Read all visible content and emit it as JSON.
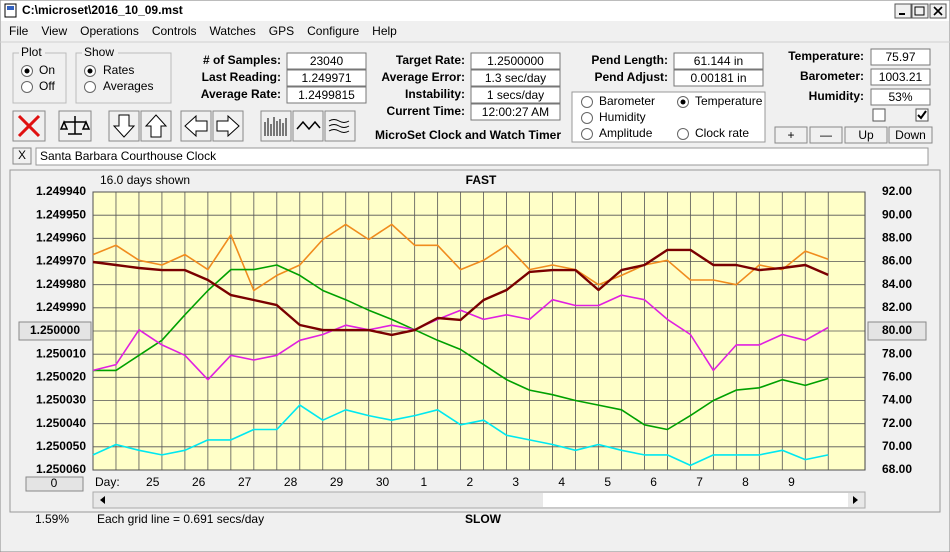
{
  "window": {
    "title": "C:\\microset\\2016_10_09.mst"
  },
  "menu": [
    "File",
    "View",
    "Operations",
    "Controls",
    "Watches",
    "GPS",
    "Configure",
    "Help"
  ],
  "plot_group": {
    "title": "Plot",
    "options": [
      {
        "label": "On",
        "selected": true
      },
      {
        "label": "Off",
        "selected": false
      }
    ]
  },
  "show_group": {
    "title": "Show",
    "options": [
      {
        "label": "Rates",
        "selected": true
      },
      {
        "label": "Averages",
        "selected": false
      }
    ]
  },
  "readings": [
    [
      {
        "label": "# of Samples:",
        "value": "23040"
      },
      {
        "label": "Last Reading:",
        "value": "1.249971"
      },
      {
        "label": "Average Rate:",
        "value": "1.2499815"
      }
    ],
    [
      {
        "label": "Target Rate:",
        "value": "1.2500000"
      },
      {
        "label": "Average Error:",
        "value": "1.3 sec/day"
      },
      {
        "label": "Instability:",
        "value": "1 secs/day"
      },
      {
        "label": "Current Time:",
        "value": "12:00:27 AM"
      }
    ],
    [
      {
        "label": "Pend Length:",
        "value": "61.144 in"
      },
      {
        "label": "Pend Adjust:",
        "value": "0.00181 in"
      }
    ],
    [
      {
        "label": "Temperature:",
        "value": "75.97"
      },
      {
        "label": "Barometer:",
        "value": "1003.21"
      },
      {
        "label": "Humidity:",
        "value": "53%"
      }
    ]
  ],
  "checkboxes": [
    false,
    true
  ],
  "app_title": "MicroSet Clock and Watch Timer",
  "buttons": [
    "+",
    "—",
    "Up",
    "Down"
  ],
  "close_button": "X",
  "clock_name": "Santa Barbara Courthouse Clock",
  "zero_button": "0",
  "percent": "1.59%",
  "chart_data": {
    "type": "line",
    "top_label": "FAST",
    "bottom_label": "SLOW",
    "days_shown": "16.0 days shown",
    "x_label": "Day:",
    "grid_note": "Each grid line = 0.691 secs/day",
    "selected_series": 1,
    "xlim": [
      0,
      16.8
    ],
    "xticks": [
      {
        "value": 1.3,
        "label": "25"
      },
      {
        "value": 2.3,
        "label": "26"
      },
      {
        "value": 3.3,
        "label": "27"
      },
      {
        "value": 4.3,
        "label": "28"
      },
      {
        "value": 5.3,
        "label": "29"
      },
      {
        "value": 6.3,
        "label": "30"
      },
      {
        "value": 7.2,
        "label": "1"
      },
      {
        "value": 8.2,
        "label": "2"
      },
      {
        "value": 9.2,
        "label": "3"
      },
      {
        "value": 10.2,
        "label": "4"
      },
      {
        "value": 11.2,
        "label": "5"
      },
      {
        "value": 12.2,
        "label": "6"
      },
      {
        "value": 13.2,
        "label": "7"
      },
      {
        "value": 14.2,
        "label": "8"
      },
      {
        "value": 15.2,
        "label": "9"
      }
    ],
    "ylim": [
      1.24994,
      1.25006
    ],
    "y_inverted": true,
    "yticks": [
      {
        "value": 1.24994,
        "label": "1.249940"
      },
      {
        "value": 1.24995,
        "label": "1.249950"
      },
      {
        "value": 1.24996,
        "label": "1.249960"
      },
      {
        "value": 1.24997,
        "label": "1.249970"
      },
      {
        "value": 1.24998,
        "label": "1.249980"
      },
      {
        "value": 1.24999,
        "label": "1.249990"
      },
      {
        "value": 1.25,
        "label": "1.250000"
      },
      {
        "value": 1.25001,
        "label": "1.250010"
      },
      {
        "value": 1.25002,
        "label": "1.250020"
      },
      {
        "value": 1.25003,
        "label": "1.250030"
      },
      {
        "value": 1.25004,
        "label": "1.250040"
      },
      {
        "value": 1.25005,
        "label": "1.250050"
      },
      {
        "value": 1.25006,
        "label": "1.250060"
      }
    ],
    "ytick_button": 6,
    "y2lim": [
      68,
      92
    ],
    "y2ticks": [
      {
        "value": 68,
        "label": "68.00"
      },
      {
        "value": 70,
        "label": "70.00"
      },
      {
        "value": 72,
        "label": "72.00"
      },
      {
        "value": 74,
        "label": "74.00"
      },
      {
        "value": 76,
        "label": "76.00"
      },
      {
        "value": 78,
        "label": "78.00"
      },
      {
        "value": 80,
        "label": "80.00"
      },
      {
        "value": 82,
        "label": "82.00"
      },
      {
        "value": 84,
        "label": "84.00"
      },
      {
        "value": 86,
        "label": "86.00"
      },
      {
        "value": 88,
        "label": "88.00"
      },
      {
        "value": 90,
        "label": "90.00"
      },
      {
        "value": 92,
        "label": "92.00"
      }
    ],
    "y2tick_button": 6,
    "grid": true,
    "x": [
      0,
      0.5,
      1,
      1.5,
      2,
      2.5,
      3,
      3.5,
      4,
      4.5,
      5,
      5.5,
      6,
      6.5,
      7,
      7.5,
      8,
      8.5,
      9,
      9.5,
      10,
      10.5,
      11,
      11.5,
      12,
      12.5,
      13,
      13.5,
      14,
      14.5,
      15,
      15.5,
      16
    ],
    "series": [
      {
        "name": "Barometer",
        "color": "#f08c1e",
        "axis": "y2",
        "values": [
          86.6,
          87.4,
          86.1,
          85.7,
          86.6,
          85.3,
          88.3,
          83.5,
          84.8,
          85.7,
          87.9,
          89.2,
          87.9,
          89.2,
          87.4,
          87.4,
          85.3,
          86.1,
          87.4,
          85.3,
          85.7,
          85.3,
          84.0,
          84.8,
          85.7,
          86.1,
          84.4,
          84.4,
          84.0,
          85.7,
          85.3,
          86.9,
          86.2
        ]
      },
      {
        "name": "Temperature",
        "color": "#00a000",
        "axis": "y2",
        "values": [
          76.6,
          76.6,
          77.9,
          79.2,
          81.4,
          83.5,
          85.3,
          85.3,
          85.7,
          84.8,
          83.5,
          82.7,
          81.8,
          81.0,
          80.1,
          79.2,
          78.4,
          77.1,
          75.8,
          74.9,
          74.5,
          74.0,
          73.6,
          73.2,
          71.9,
          71.5,
          72.7,
          74.0,
          74.9,
          75.1,
          75.8,
          75.3,
          75.9
        ]
      },
      {
        "name": "Humidity",
        "color": "#e020e0",
        "axis": "y2",
        "values": [
          76.6,
          77.1,
          80.1,
          78.8,
          77.9,
          75.8,
          77.9,
          77.5,
          77.9,
          79.2,
          79.7,
          80.5,
          80.1,
          80.5,
          80.1,
          81.0,
          81.8,
          81.0,
          81.4,
          81.0,
          82.7,
          82.2,
          82.2,
          83.1,
          82.7,
          81.0,
          79.7,
          76.6,
          78.8,
          78.8,
          79.7,
          79.2,
          80.3
        ]
      },
      {
        "name": "Clock rate",
        "color": "#7a0000",
        "axis": "y",
        "values": [
          1.2499702,
          1.2499715,
          1.2499728,
          1.2499737,
          1.2499737,
          1.249978,
          1.2499845,
          1.2499866,
          1.2499888,
          1.2499974,
          1.2499996,
          1.2499996,
          1.2499996,
          1.2500017,
          1.2499996,
          1.2499944,
          1.2499952,
          1.2499866,
          1.2499823,
          1.2499745,
          1.2499737,
          1.2499737,
          1.2499823,
          1.2499737,
          1.2499715,
          1.249965,
          1.249965,
          1.2499715,
          1.2499715,
          1.2499737,
          1.2499728,
          1.2499715,
          1.2499758
        ]
      },
      {
        "name": "Amplitude",
        "color": "#00e8f0",
        "axis": "y2",
        "values": [
          69.3,
          70.2,
          69.7,
          69.3,
          69.7,
          70.6,
          70.6,
          71.5,
          71.5,
          73.6,
          72.3,
          73.2,
          72.7,
          72.3,
          72.7,
          73.2,
          71.9,
          72.3,
          71.0,
          70.6,
          70.2,
          69.7,
          70.2,
          69.7,
          69.3,
          69.3,
          68.4,
          69.3,
          69.3,
          69.3,
          69.7,
          68.9,
          69.3
        ]
      }
    ]
  }
}
